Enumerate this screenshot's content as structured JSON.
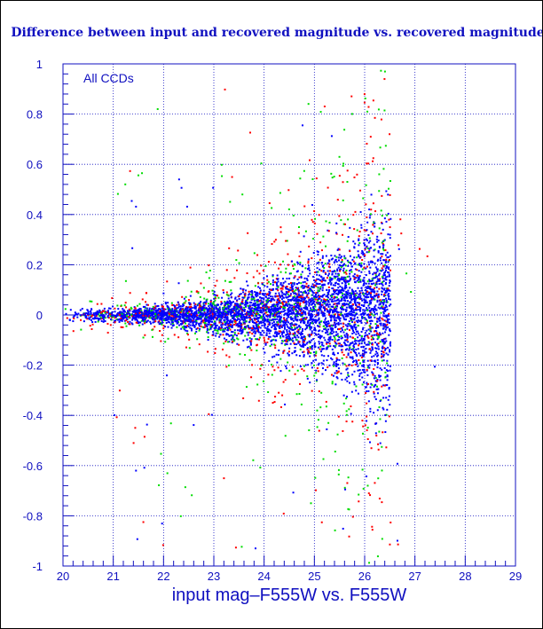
{
  "chart_data": {
    "type": "scatter",
    "title": "Difference between input and recovered magnitude vs. recovered magnitude",
    "xlabel": "input mag–F555W vs. F555W",
    "ylabel": "",
    "annotation": "All CCDs",
    "xlim": [
      20,
      29
    ],
    "ylim": [
      -1,
      1
    ],
    "x_ticks": [
      "20",
      "21",
      "22",
      "23",
      "24",
      "25",
      "26",
      "27",
      "28",
      "29"
    ],
    "y_ticks": [
      "1",
      "0.8",
      "0.6",
      "0.4",
      "0.2",
      "0",
      "-0.2",
      "-0.4",
      "-0.6",
      "-0.8",
      "-1"
    ],
    "grid": true,
    "legend": "none",
    "series_colors": [
      "#ff0000",
      "#00dd00",
      "#0000ff"
    ],
    "distribution": {
      "x_min": 20.0,
      "x_cutoff": 26.5,
      "spread_at_20": 0.015,
      "spread_at_26_4": 0.25,
      "core_color": "#0000ff",
      "outlier_colors": [
        "#ff0000",
        "#00dd00"
      ]
    }
  }
}
